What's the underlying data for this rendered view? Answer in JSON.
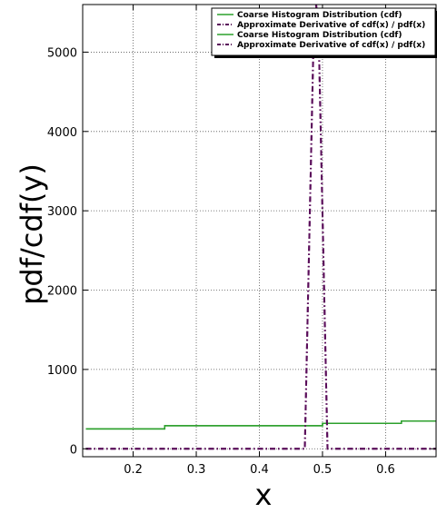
{
  "chart_data": {
    "type": "line",
    "xlabel": "x",
    "ylabel": "pdf/cdf(y)",
    "xlim": [
      0.12,
      0.68
    ],
    "ylim": [
      -100,
      5600
    ],
    "xticks": [
      0.2,
      0.3,
      0.4,
      0.5,
      0.6
    ],
    "yticks": [
      0,
      1000,
      2000,
      3000,
      4000,
      5000
    ],
    "xtick_labels": [
      "0.2",
      "0.3",
      "0.4",
      "0.5",
      "0.6"
    ],
    "ytick_labels": [
      "0",
      "1000",
      "2000",
      "3000",
      "4000",
      "5000"
    ],
    "grid": true,
    "legend_position": "top-right",
    "series": [
      {
        "name": "Coarse Histogram Distribution (cdf)",
        "color": "#2ca02c",
        "style": "solid",
        "x": [
          0.125,
          0.25,
          0.25,
          0.375,
          0.375,
          0.5,
          0.5,
          0.625,
          0.625,
          0.68
        ],
        "y": [
          250,
          250,
          290,
          290,
          290,
          290,
          320,
          320,
          350,
          350
        ]
      },
      {
        "name": "Approximate Derivative of cdf(x) / pdf(x)",
        "color": "#5a0d5a",
        "style": "dashdot",
        "x": [
          0.125,
          0.472,
          0.486,
          0.49,
          0.494,
          0.508,
          0.68
        ],
        "y": [
          0,
          0,
          5200,
          5600,
          5200,
          0,
          0
        ]
      },
      {
        "name": "Coarse Histogram Distribution (cdf)",
        "color": "#2ca02c",
        "style": "solid",
        "x": [
          0.125,
          0.25,
          0.25,
          0.375,
          0.375,
          0.5,
          0.5,
          0.625,
          0.625,
          0.68
        ],
        "y": [
          250,
          250,
          290,
          290,
          290,
          290,
          320,
          320,
          350,
          350
        ]
      },
      {
        "name": "Approximate Derivative of cdf(x) / pdf(x)",
        "color": "#5a0d5a",
        "style": "dashdot",
        "x": [
          0.125,
          0.472,
          0.486,
          0.49,
          0.494,
          0.508,
          0.68
        ],
        "y": [
          0,
          0,
          5200,
          5600,
          5200,
          0,
          0
        ]
      }
    ]
  }
}
